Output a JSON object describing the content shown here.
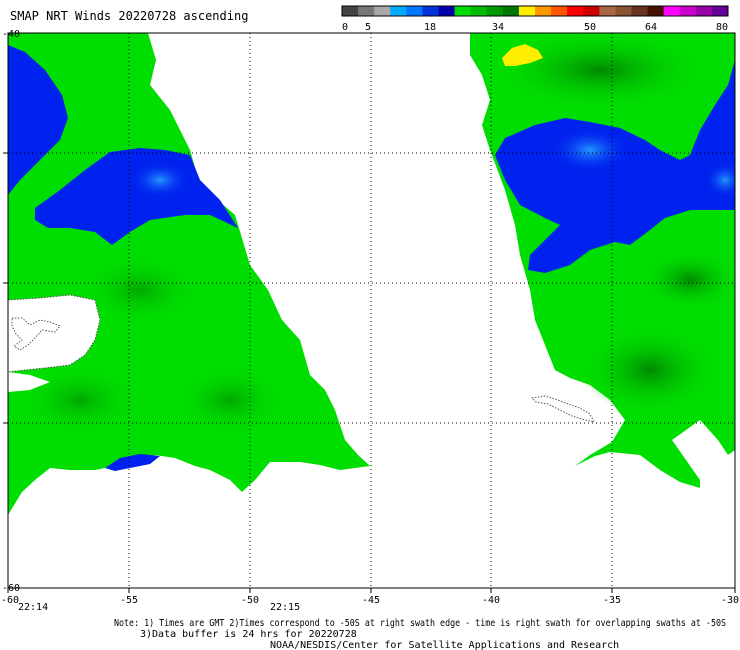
{
  "title": "SMAP NRT Winds 20220728 ascending",
  "colorbar": {
    "ticks": [
      "0",
      "5",
      "18",
      "34",
      "50",
      "64",
      "80"
    ],
    "colors": [
      "#444444",
      "#777777",
      "#a8a8a8",
      "#00aaff",
      "#0077ff",
      "#0033dd",
      "#0000aa",
      "#00dd00",
      "#00bb00",
      "#009900",
      "#007700",
      "#ffee00",
      "#ff9900",
      "#ff5500",
      "#ff0000",
      "#cc0000",
      "#aa6644",
      "#885533",
      "#663322",
      "#441100",
      "#ff00ff",
      "#cc00cc",
      "#9900aa",
      "#660099"
    ]
  },
  "colors": {
    "wind_low": "#0022ee",
    "wind_low_light": "#2299ff",
    "wind_mid": "#00dd00",
    "wind_mid_dark": "#00aa00",
    "wind_high": "#ffee00",
    "land_outline": "#555555",
    "grid": "#000000"
  },
  "axes": {
    "x_labels": [
      "-60",
      "-55",
      "-50",
      "-45",
      "-40",
      "-35",
      "-30"
    ],
    "y_labels_left": [
      "-40",
      "",
      "",
      "",
      "-60"
    ]
  },
  "times": [
    "22:14",
    "22:15"
  ],
  "footer": {
    "line1": "Note: 1) Times are GMT 2)Times correspond to -50S at right swath edge - time is right swath for overlapping swaths at -50S",
    "line2": "3)Data buffer is 24 hrs for 20220728",
    "line3": "NOAA/NESDIS/Center for Satellite Applications and Research"
  }
}
